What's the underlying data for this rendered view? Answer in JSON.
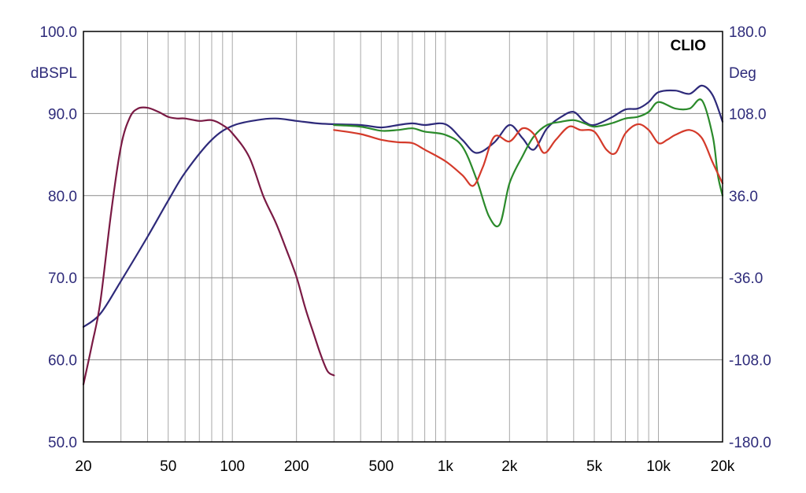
{
  "chart_data": {
    "type": "line",
    "title": "",
    "brand": "CLIO",
    "xscale": "log",
    "xlim": [
      20,
      20000
    ],
    "ylim": [
      50,
      100
    ],
    "y2lim": [
      -180,
      180
    ],
    "ylabel": "dBSPL",
    "y2label": "Deg",
    "grid": true,
    "legend": "none",
    "x_ticks": [
      {
        "value": 20,
        "label": "20"
      },
      {
        "value": 50,
        "label": "50"
      },
      {
        "value": 100,
        "label": "100"
      },
      {
        "value": 200,
        "label": "200"
      },
      {
        "value": 500,
        "label": "500"
      },
      {
        "value": 1000,
        "label": "1k"
      },
      {
        "value": 2000,
        "label": "2k"
      },
      {
        "value": 5000,
        "label": "5k"
      },
      {
        "value": 10000,
        "label": "10k"
      },
      {
        "value": 20000,
        "label": "20k"
      }
    ],
    "y_ticks": [
      {
        "value": 100,
        "label": "100.0"
      },
      {
        "value": 90,
        "label": "90.0"
      },
      {
        "value": 80,
        "label": "80.0"
      },
      {
        "value": 70,
        "label": "70.0"
      },
      {
        "value": 60,
        "label": "60.0"
      },
      {
        "value": 50,
        "label": "50.0"
      }
    ],
    "y2_ticks": [
      {
        "value": 180,
        "label": "180.0"
      },
      {
        "value": 108,
        "label": "108.0"
      },
      {
        "value": 36,
        "label": "36.0"
      },
      {
        "value": -36,
        "label": "-36.0"
      },
      {
        "value": -108,
        "label": "-108.0"
      },
      {
        "value": -180,
        "label": "-180.0"
      }
    ],
    "series": [
      {
        "color": "#2e2a7a",
        "x": [
          20,
          24,
          30,
          40,
          50,
          60,
          80,
          100,
          130,
          160,
          200,
          250,
          300,
          400,
          500,
          600,
          700,
          800,
          1000,
          1200,
          1400,
          1700,
          2000,
          2300,
          2600,
          3000,
          3500,
          4000,
          4500,
          5000,
          6000,
          7000,
          8000,
          9000,
          10000,
          12000,
          14000,
          16000,
          18000,
          20000
        ],
        "values": [
          64.0,
          65.6,
          69.6,
          75.0,
          79.4,
          82.8,
          86.8,
          88.5,
          89.2,
          89.4,
          89.1,
          88.8,
          88.7,
          88.6,
          88.3,
          88.6,
          88.8,
          88.6,
          88.7,
          86.8,
          85.2,
          86.5,
          88.6,
          87.0,
          85.6,
          88.2,
          89.6,
          90.2,
          89.0,
          88.6,
          89.5,
          90.5,
          90.6,
          91.4,
          92.6,
          92.8,
          92.4,
          93.4,
          92.2,
          89.0
        ]
      },
      {
        "color": "#2b8a2b",
        "x": [
          300,
          400,
          500,
          600,
          700,
          800,
          1000,
          1200,
          1400,
          1600,
          1800,
          2000,
          2300,
          2600,
          3000,
          3500,
          4000,
          4500,
          5000,
          6000,
          7000,
          8000,
          9000,
          10000,
          12000,
          14000,
          16000,
          18000,
          19000,
          20000
        ],
        "values": [
          88.6,
          88.4,
          87.9,
          88.0,
          88.2,
          87.8,
          87.4,
          86.0,
          82.0,
          77.5,
          76.5,
          81.5,
          84.8,
          87.2,
          88.6,
          89.0,
          89.2,
          88.8,
          88.4,
          88.8,
          89.4,
          89.6,
          90.2,
          91.4,
          90.6,
          90.6,
          91.6,
          87.2,
          82.5,
          80.0
        ]
      },
      {
        "color": "#d43a2a",
        "x": [
          300,
          400,
          500,
          600,
          700,
          800,
          1000,
          1200,
          1350,
          1500,
          1700,
          2000,
          2300,
          2600,
          2900,
          3300,
          3800,
          4300,
          5000,
          5700,
          6300,
          7000,
          8000,
          9000,
          10000,
          11000,
          12000,
          14000,
          16000,
          18000,
          20000
        ],
        "values": [
          88.0,
          87.5,
          86.8,
          86.5,
          86.4,
          85.6,
          84.2,
          82.5,
          81.2,
          83.5,
          87.2,
          86.6,
          88.2,
          87.5,
          85.2,
          86.8,
          88.4,
          88.0,
          87.8,
          85.6,
          85.2,
          87.6,
          88.7,
          88.0,
          86.4,
          86.8,
          87.4,
          88.0,
          87.0,
          84.0,
          81.5
        ]
      },
      {
        "color": "#7a1a44",
        "x": [
          20,
          22,
          24,
          27,
          30,
          33,
          36,
          40,
          45,
          50,
          55,
          60,
          70,
          80,
          90,
          100,
          120,
          140,
          160,
          180,
          200,
          220,
          240,
          260,
          280,
          300
        ],
        "values": [
          57.0,
          62.0,
          67.0,
          78.0,
          86.0,
          89.5,
          90.6,
          90.7,
          90.2,
          89.6,
          89.4,
          89.4,
          89.1,
          89.2,
          88.6,
          87.6,
          84.7,
          79.9,
          76.7,
          73.3,
          70.1,
          66.3,
          63.3,
          60.6,
          58.6,
          58.1
        ]
      }
    ]
  }
}
